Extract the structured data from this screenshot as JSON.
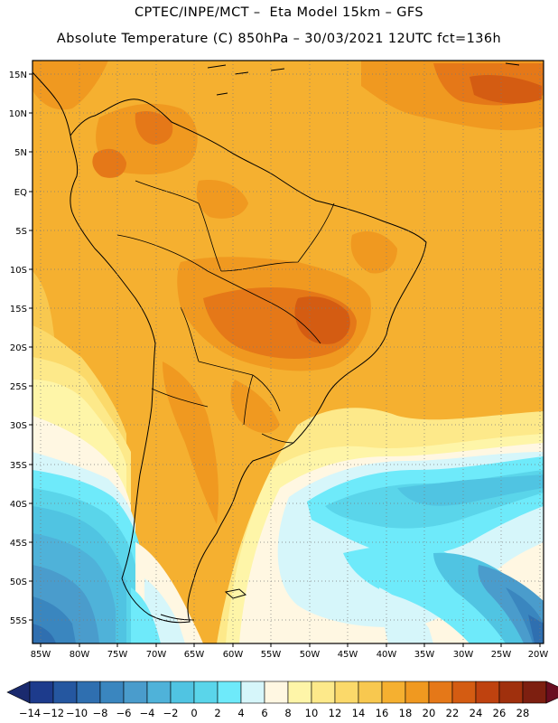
{
  "header": {
    "line1": "CPTEC/INPE/MCT –  Eta Model 15km – GFS",
    "line2": "Absolute Temperature (C) 850hPa – 30/03/2021 12UTC fct=136h"
  },
  "map": {
    "variable": "Absolute Temperature (C) 850hPa",
    "lon_range": [
      -86,
      -19
    ],
    "lat_range": [
      -58.5,
      17
    ],
    "lon_labels": [
      "85W",
      "80W",
      "75W",
      "70W",
      "65W",
      "60W",
      "55W",
      "50W",
      "45W",
      "40W",
      "35W",
      "30W",
      "25W",
      "20W"
    ],
    "lat_labels": [
      "15N",
      "10N",
      "5N",
      "EQ",
      "5S",
      "10S",
      "15S",
      "20S",
      "25S",
      "30S",
      "35S",
      "40S",
      "45S",
      "50S",
      "55S"
    ]
  },
  "colorbar": {
    "labels": [
      "-14",
      "-12",
      "-10",
      "-8",
      "-6",
      "-4",
      "-2",
      "0",
      "2",
      "4",
      "6",
      "8",
      "10",
      "12",
      "14",
      "16",
      "18",
      "20",
      "22",
      "24",
      "26",
      "28"
    ],
    "colors": [
      "#1d3b8c",
      "#2557a0",
      "#2f6fb0",
      "#3a86bf",
      "#4a9ccc",
      "#4fb2d9",
      "#50c4e2",
      "#5ad5ea",
      "#6eeafa",
      "#d6f6fa",
      "#fff7e2",
      "#fef5a8",
      "#fde98a",
      "#fbd96a",
      "#f8c84f",
      "#f5b030",
      "#f09920",
      "#e57818",
      "#d45c12",
      "#bf420f",
      "#a0300d",
      "#7d1f10"
    ],
    "left_arrow_color": "#1a2a6e",
    "right_arrow_color": "#6a0d20"
  }
}
